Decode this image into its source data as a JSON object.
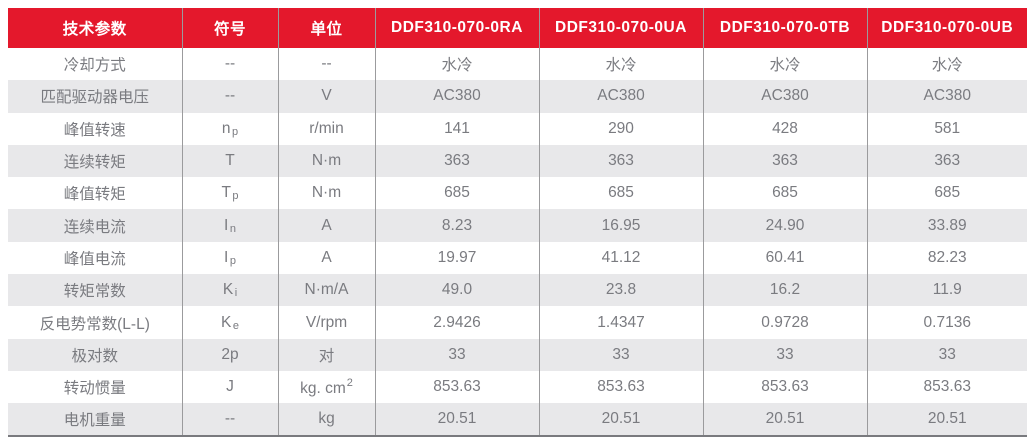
{
  "table": {
    "columns": [
      "技术参数",
      "符号",
      "单位",
      "DDF310-070-0RA",
      "DDF310-070-0UA",
      "DDF310-070-0TB",
      "DDF310-070-0UB"
    ],
    "rows": [
      {
        "label": "冷却方式",
        "symbol": {
          "base": "--",
          "sub": ""
        },
        "unit": {
          "base": "--",
          "sup": ""
        },
        "values": [
          "水冷",
          "水冷",
          "水冷",
          "水冷"
        ]
      },
      {
        "label": "匹配驱动器电压",
        "symbol": {
          "base": "--",
          "sub": ""
        },
        "unit": {
          "base": "V",
          "sup": ""
        },
        "values": [
          "AC380",
          "AC380",
          "AC380",
          "AC380"
        ]
      },
      {
        "label": "峰值转速",
        "symbol": {
          "base": "n",
          "sub": "p"
        },
        "unit": {
          "base": "r/min",
          "sup": ""
        },
        "values": [
          "141",
          "290",
          "428",
          "581"
        ]
      },
      {
        "label": "连续转矩",
        "symbol": {
          "base": "T",
          "sub": ""
        },
        "unit": {
          "base": "N·m",
          "sup": ""
        },
        "values": [
          "363",
          "363",
          "363",
          "363"
        ]
      },
      {
        "label": "峰值转矩",
        "symbol": {
          "base": "T",
          "sub": "p"
        },
        "unit": {
          "base": "N·m",
          "sup": ""
        },
        "values": [
          "685",
          "685",
          "685",
          "685"
        ]
      },
      {
        "label": "连续电流",
        "symbol": {
          "base": "I",
          "sub": "n"
        },
        "unit": {
          "base": "A",
          "sup": ""
        },
        "values": [
          "8.23",
          "16.95",
          "24.90",
          "33.89"
        ]
      },
      {
        "label": "峰值电流",
        "symbol": {
          "base": "I",
          "sub": "p"
        },
        "unit": {
          "base": "A",
          "sup": ""
        },
        "values": [
          "19.97",
          "41.12",
          "60.41",
          "82.23"
        ]
      },
      {
        "label": "转矩常数",
        "symbol": {
          "base": "K",
          "sub": "i"
        },
        "unit": {
          "base": "N·m/A",
          "sup": ""
        },
        "values": [
          "49.0",
          "23.8",
          "16.2",
          "11.9"
        ]
      },
      {
        "label": "反电势常数(L-L)",
        "symbol": {
          "base": "K",
          "sub": "e"
        },
        "unit": {
          "base": "V/rpm",
          "sup": ""
        },
        "values": [
          "2.9426",
          "1.4347",
          "0.9728",
          "0.7136"
        ]
      },
      {
        "label": "极对数",
        "symbol": {
          "base": "2p",
          "sub": ""
        },
        "unit": {
          "base": "对",
          "sup": ""
        },
        "values": [
          "33",
          "33",
          "33",
          "33"
        ]
      },
      {
        "label": "转动惯量",
        "symbol": {
          "base": "J",
          "sub": ""
        },
        "unit": {
          "base": "kg. cm",
          "sup": "2"
        },
        "values": [
          "853.63",
          "853.63",
          "853.63",
          "853.63"
        ]
      },
      {
        "label": "电机重量",
        "symbol": {
          "base": "--",
          "sub": ""
        },
        "unit": {
          "base": "kg",
          "sup": ""
        },
        "values": [
          "20.51",
          "20.51",
          "20.51",
          "20.51"
        ]
      }
    ]
  },
  "colors": {
    "header_bg": "#e4182c",
    "header_text": "#ffffff",
    "row_alt_bg": "#e8e8ea",
    "divider": "#9b9b9d",
    "body_text": "#7a7b80",
    "bottom_border": "#797a7e"
  }
}
